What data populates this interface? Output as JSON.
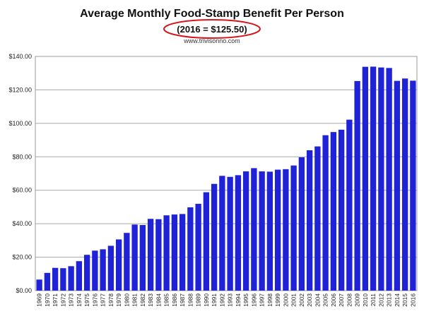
{
  "chart_data": {
    "type": "bar",
    "title": "Average Monthly Food-Stamp Benefit Per Person",
    "subtitle": "(2016 = $125.50)",
    "source": "www.trivisonno.com",
    "xlabel": "",
    "ylabel": "",
    "ylim": [
      0,
      140
    ],
    "yticks": [
      "$0.00",
      "$20.00",
      "$40.00",
      "$60.00",
      "$80.00",
      "$100.00",
      "$120.00",
      "$140.00"
    ],
    "grid": true,
    "legend": "none",
    "bar_color": "#1f22d6",
    "highlight_color": "#d8141b",
    "categories": [
      "1969",
      "1970",
      "1971",
      "1972",
      "1973",
      "1974",
      "1975",
      "1976",
      "1977",
      "1978",
      "1979",
      "1980",
      "1981",
      "1982",
      "1983",
      "1984",
      "1985",
      "1986",
      "1987",
      "1988",
      "1989",
      "1990",
      "1991",
      "1992",
      "1993",
      "1994",
      "1995",
      "1996",
      "1997",
      "1998",
      "1999",
      "2000",
      "2001",
      "2002",
      "2003",
      "2004",
      "2005",
      "2006",
      "2007",
      "2008",
      "2009",
      "2010",
      "2011",
      "2012",
      "2013",
      "2014",
      "2015",
      "2016"
    ],
    "values": [
      6.6,
      10.6,
      13.6,
      13.4,
      14.6,
      17.6,
      21.4,
      23.9,
      24.7,
      26.8,
      30.6,
      34.5,
      39.5,
      39.2,
      42.9,
      42.7,
      45.0,
      45.5,
      45.8,
      49.8,
      51.9,
      58.8,
      63.8,
      68.6,
      68.0,
      69.0,
      71.3,
      73.2,
      71.3,
      71.1,
      72.3,
      72.6,
      74.8,
      79.7,
      83.9,
      86.2,
      92.9,
      94.8,
      96.2,
      102.2,
      125.3,
      133.8,
      133.9,
      133.4,
      133.1,
      125.4,
      126.8,
      125.5
    ]
  }
}
